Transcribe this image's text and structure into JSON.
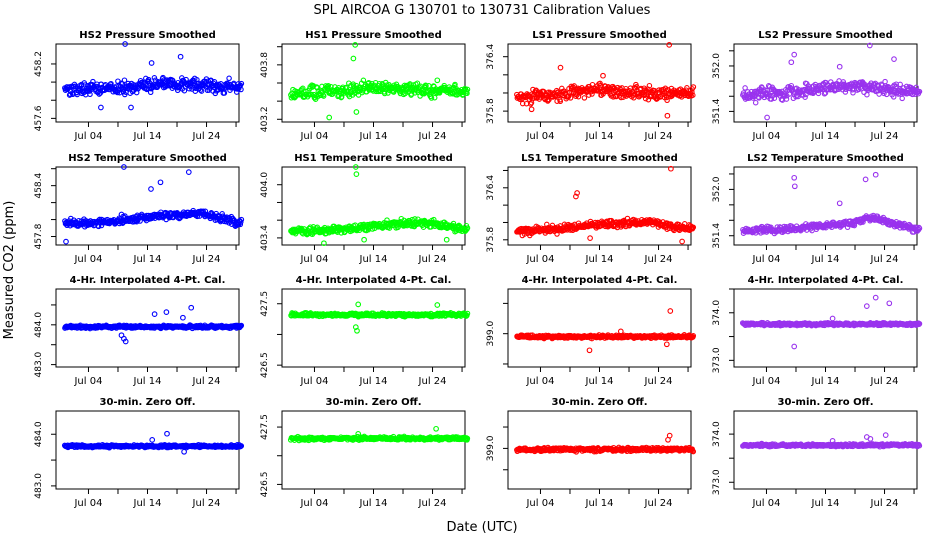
{
  "figure": {
    "title": "SPL   AIRCOA G   130701 to 130731   Calibration Values",
    "xlabel": "Date (UTC)",
    "ylabel": "Measured CO2 (ppm)"
  },
  "chart_data": [
    {
      "type": "scatter",
      "title": "HS2 Pressure Smoothed",
      "series_color": "#0000ff",
      "xlim": [
        -2.5,
        28.5
      ],
      "ylim": [
        457.56,
        458.42
      ],
      "yticks": [
        "457.6",
        "457.8",
        "458.0",
        "458.2"
      ],
      "ytick_values": [
        457.6,
        457.8,
        458.0,
        458.2
      ],
      "ytick_labels_shown": [
        "457.6",
        "458.2"
      ],
      "xticks": [
        "Jul 04",
        "Jul 14",
        "Jul 24"
      ],
      "xtick_days": [
        3,
        13,
        23
      ],
      "x_minor_days": [
        8,
        18,
        28
      ],
      "base": 457.93,
      "noise": 0.05,
      "trend": [
        [
          0,
          0
        ],
        [
          7,
          0
        ],
        [
          12,
          0.02
        ],
        [
          16,
          0.06
        ],
        [
          20,
          0.03
        ],
        [
          28,
          0.02
        ]
      ],
      "outliers": [
        [
          9.2,
          458.42
        ],
        [
          5.1,
          457.72
        ],
        [
          13.7,
          458.21
        ],
        [
          18.6,
          458.28
        ],
        [
          21.0,
          458.04
        ],
        [
          10.2,
          457.72
        ]
      ]
    },
    {
      "type": "scatter",
      "title": "HS1 Pressure Smoothed",
      "series_color": "#00ff00",
      "xlim": [
        -2.5,
        28.5
      ],
      "ylim": [
        403.17,
        404.03
      ],
      "yticks": [
        "403.2",
        "403.4",
        "403.6",
        "403.8",
        "404.0"
      ],
      "ytick_values": [
        403.2,
        403.4,
        403.6,
        403.8,
        404.0
      ],
      "ytick_labels_shown": [
        "403.2",
        "403.8"
      ],
      "xticks": [
        "Jul 04",
        "Jul 14",
        "Jul 24"
      ],
      "xtick_days": [
        3,
        13,
        23
      ],
      "x_minor_days": [
        8,
        18,
        28
      ],
      "base": 403.49,
      "noise": 0.05,
      "trend": [
        [
          0,
          0
        ],
        [
          8,
          0.02
        ],
        [
          12,
          0.06
        ],
        [
          17,
          0.05
        ],
        [
          22,
          0.03
        ],
        [
          28,
          0.02
        ]
      ],
      "outliers": [
        [
          9.9,
          404.02
        ],
        [
          9.6,
          403.87
        ],
        [
          5.5,
          403.22
        ],
        [
          10.1,
          403.28
        ],
        [
          23.8,
          403.63
        ]
      ]
    },
    {
      "type": "scatter",
      "title": "LS1 Pressure Smoothed",
      "series_color": "#ff0000",
      "xlim": [
        -2.5,
        28.5
      ],
      "ylim": [
        375.68,
        376.54
      ],
      "yticks": [
        "375.8",
        "376.0",
        "376.2",
        "376.4"
      ],
      "ytick_values": [
        375.8,
        376.0,
        376.2,
        376.4
      ],
      "ytick_labels_shown": [
        "375.8",
        "376.4"
      ],
      "xticks": [
        "Jul 04",
        "Jul 14",
        "Jul 24"
      ],
      "xtick_days": [
        3,
        13,
        23
      ],
      "x_minor_days": [
        8,
        18,
        28
      ],
      "base": 375.96,
      "noise": 0.05,
      "trend": [
        [
          0,
          0
        ],
        [
          6,
          0.01
        ],
        [
          11,
          0.08
        ],
        [
          16,
          0.06
        ],
        [
          22,
          0.04
        ],
        [
          28,
          0.03
        ]
      ],
      "outliers": [
        [
          24.8,
          376.53
        ],
        [
          6.4,
          376.28
        ],
        [
          24.5,
          375.75
        ],
        [
          13.6,
          376.19
        ],
        [
          1.5,
          375.82
        ]
      ]
    },
    {
      "type": "scatter",
      "title": "LS2 Pressure Smoothed",
      "series_color": "#9933ee",
      "xlim": [
        -2.5,
        28.5
      ],
      "ylim": [
        351.26,
        352.29
      ],
      "yticks": [
        "351.4",
        "351.6",
        "351.8",
        "352.0",
        "352.2"
      ],
      "ytick_values": [
        351.4,
        351.6,
        351.8,
        352.0,
        352.2
      ],
      "ytick_labels_shown": [
        "351.4",
        "352.0"
      ],
      "xticks": [
        "Jul 04",
        "Jul 14",
        "Jul 24"
      ],
      "xtick_days": [
        3,
        13,
        23
      ],
      "x_minor_days": [
        8,
        18,
        28
      ],
      "base": 351.62,
      "noise": 0.06,
      "trend": [
        [
          0,
          0
        ],
        [
          7,
          0.03
        ],
        [
          13,
          0.1
        ],
        [
          18,
          0.12
        ],
        [
          23,
          0.08
        ],
        [
          28,
          0.05
        ]
      ],
      "outliers": [
        [
          7.7,
          352.15
        ],
        [
          20.5,
          352.27
        ],
        [
          7.2,
          352.05
        ],
        [
          24.6,
          352.09
        ],
        [
          15.4,
          351.99
        ],
        [
          3.1,
          351.32
        ]
      ]
    },
    {
      "type": "scatter",
      "title": "HS2 Temperature Smoothed",
      "series_color": "#0000ff",
      "xlim": [
        -2.5,
        28.5
      ],
      "ylim": [
        457.7,
        458.62
      ],
      "yticks": [
        "457.8",
        "458.0",
        "458.2",
        "458.4",
        "458.6"
      ],
      "ytick_values": [
        457.8,
        458.0,
        458.2,
        458.4,
        458.6
      ],
      "ytick_labels_shown": [
        "457.8",
        "458.4"
      ],
      "xticks": [
        "Jul 04",
        "Jul 14",
        "Jul 24"
      ],
      "xtick_days": [
        3,
        13,
        23
      ],
      "x_minor_days": [
        8,
        18,
        28
      ],
      "base": 457.96,
      "noise": 0.03,
      "trend": [
        [
          0,
          0
        ],
        [
          6,
          0.01
        ],
        [
          12,
          0.06
        ],
        [
          18,
          0.1
        ],
        [
          22,
          0.11
        ],
        [
          25,
          0.07
        ],
        [
          28,
          0.01
        ]
      ],
      "outliers": [
        [
          9.0,
          458.62
        ],
        [
          13.6,
          458.36
        ],
        [
          15.2,
          458.44
        ],
        [
          20.0,
          458.56
        ],
        [
          8.6,
          458.06
        ],
        [
          -0.8,
          457.74
        ]
      ]
    },
    {
      "type": "scatter",
      "title": "HS1 Temperature Smoothed",
      "series_color": "#00ff00",
      "xlim": [
        -2.5,
        28.5
      ],
      "ylim": [
        403.32,
        404.2
      ],
      "yticks": [
        "403.4",
        "403.6",
        "403.8",
        "404.0"
      ],
      "ytick_values": [
        403.4,
        403.6,
        403.8,
        404.0
      ],
      "ytick_labels_shown": [
        "403.4",
        "404.0"
      ],
      "xticks": [
        "Jul 04",
        "Jul 14",
        "Jul 24"
      ],
      "xtick_days": [
        3,
        13,
        23
      ],
      "x_minor_days": [
        8,
        18,
        28
      ],
      "base": 403.47,
      "noise": 0.03,
      "trend": [
        [
          0,
          0
        ],
        [
          8,
          0.03
        ],
        [
          14,
          0.07
        ],
        [
          19,
          0.1
        ],
        [
          22,
          0.1
        ],
        [
          26,
          0.06
        ],
        [
          28,
          0.02
        ]
      ],
      "outliers": [
        [
          10.0,
          404.2
        ],
        [
          10.1,
          404.12
        ],
        [
          4.6,
          403.34
        ],
        [
          11.4,
          403.38
        ],
        [
          25.4,
          403.38
        ]
      ]
    },
    {
      "type": "scatter",
      "title": "LS1 Temperature Smoothed",
      "series_color": "#ff0000",
      "xlim": [
        -2.5,
        28.5
      ],
      "ylim": [
        375.74,
        376.64
      ],
      "yticks": [
        "375.8",
        "376.0",
        "376.2",
        "376.4",
        "376.6"
      ],
      "ytick_values": [
        375.8,
        376.0,
        376.2,
        376.4,
        376.6
      ],
      "ytick_labels_shown": [
        "375.8",
        "376.4"
      ],
      "xticks": [
        "Jul 04",
        "Jul 14",
        "Jul 24"
      ],
      "xtick_days": [
        3,
        13,
        23
      ],
      "x_minor_days": [
        8,
        18,
        28
      ],
      "base": 375.9,
      "noise": 0.03,
      "trend": [
        [
          0,
          0
        ],
        [
          7,
          0.03
        ],
        [
          12,
          0.07
        ],
        [
          18,
          0.09
        ],
        [
          21,
          0.12
        ],
        [
          24,
          0.07
        ],
        [
          28,
          0.03
        ]
      ],
      "outliers": [
        [
          9.2,
          376.34
        ],
        [
          9.0,
          376.3
        ],
        [
          25.1,
          376.62
        ],
        [
          11.4,
          375.82
        ],
        [
          27.0,
          375.78
        ]
      ]
    },
    {
      "type": "scatter",
      "title": "LS2 Temperature Smoothed",
      "series_color": "#9933ee",
      "xlim": [
        -2.5,
        28.5
      ],
      "ylim": [
        351.28,
        352.29
      ],
      "yticks": [
        "351.4",
        "351.6",
        "351.8",
        "352.0",
        "352.2"
      ],
      "ytick_values": [
        351.4,
        351.6,
        351.8,
        352.0,
        352.2
      ],
      "ytick_labels_shown": [
        "351.4",
        "352.0"
      ],
      "xticks": [
        "Jul 04",
        "Jul 14",
        "Jul 24"
      ],
      "xtick_days": [
        3,
        13,
        23
      ],
      "x_minor_days": [
        8,
        18,
        28
      ],
      "base": 351.46,
      "noise": 0.03,
      "trend": [
        [
          0,
          0
        ],
        [
          7,
          0.03
        ],
        [
          13,
          0.07
        ],
        [
          18,
          0.11
        ],
        [
          21,
          0.18
        ],
        [
          24,
          0.1
        ],
        [
          28,
          0.03
        ]
      ],
      "outliers": [
        [
          7.8,
          352.04
        ],
        [
          7.7,
          352.15
        ],
        [
          19.8,
          352.13
        ],
        [
          21.5,
          352.19
        ],
        [
          15.4,
          351.82
        ]
      ]
    },
    {
      "type": "scatter",
      "title": "4-Hr. Interpolated 4-Pt. Cal.",
      "series_color": "#0000ff",
      "xlim": [
        -2.5,
        28.5
      ],
      "ylim": [
        482.94,
        484.9
      ],
      "yticks": [
        "483.0",
        "483.5",
        "484.0",
        "484.5"
      ],
      "ytick_values": [
        483.0,
        483.5,
        484.0,
        484.5
      ],
      "ytick_labels_shown": [
        "483.0",
        "484.0"
      ],
      "xticks": [
        "Jul 04",
        "Jul 14",
        "Jul 24"
      ],
      "xtick_days": [
        3,
        13,
        23
      ],
      "x_minor_days": [
        8,
        18,
        28
      ],
      "base": 483.95,
      "noise": 0.025,
      "trend": [
        [
          0,
          0
        ],
        [
          28,
          0
        ]
      ],
      "outliers": [
        [
          9.0,
          483.65
        ],
        [
          9.3,
          483.58
        ],
        [
          8.6,
          483.74
        ],
        [
          14.2,
          484.27
        ],
        [
          16.2,
          484.32
        ],
        [
          20.4,
          484.43
        ],
        [
          19.0,
          484.18
        ]
      ]
    },
    {
      "type": "scatter",
      "title": "4-Hr. Interpolated 4-Pt. Cal.",
      "series_color": "#00ff00",
      "xlim": [
        -2.5,
        28.5
      ],
      "ylim": [
        426.47,
        427.74
      ],
      "yticks": [
        "426.5",
        "427.0",
        "427.5"
      ],
      "ytick_values": [
        426.5,
        427.0,
        427.5
      ],
      "ytick_labels_shown": [
        "426.5",
        "427.5"
      ],
      "xticks": [
        "Jul 04",
        "Jul 14",
        "Jul 24"
      ],
      "xtick_days": [
        3,
        13,
        23
      ],
      "x_minor_days": [
        8,
        18,
        28
      ],
      "base": 427.32,
      "noise": 0.02,
      "trend": [
        [
          0,
          0
        ],
        [
          28,
          0
        ]
      ],
      "outliers": [
        [
          10.0,
          427.12
        ],
        [
          10.2,
          427.06
        ],
        [
          10.4,
          427.49
        ],
        [
          23.8,
          427.48
        ]
      ]
    },
    {
      "type": "scatter",
      "title": "4-Hr. Interpolated 4-Pt. Cal.",
      "series_color": "#ff0000",
      "xlim": [
        -2.5,
        28.5
      ],
      "ylim": [
        398.56,
        399.59
      ],
      "yticks": [
        "398.6",
        "399.0",
        "399.4"
      ],
      "ytick_values": [
        398.6,
        399.0,
        399.4
      ],
      "ytick_labels_shown": [
        "399.0"
      ],
      "xticks": [
        "Jul 04",
        "Jul 14",
        "Jul 24"
      ],
      "xtick_days": [
        3,
        13,
        23
      ],
      "x_minor_days": [
        8,
        18,
        28
      ],
      "base": 398.96,
      "noise": 0.015,
      "trend": [
        [
          0,
          0
        ],
        [
          28,
          0
        ]
      ],
      "outliers": [
        [
          25.0,
          399.3
        ],
        [
          11.3,
          398.78
        ],
        [
          24.4,
          398.86
        ],
        [
          16.6,
          399.03
        ]
      ]
    },
    {
      "type": "scatter",
      "title": "4-Hr. Interpolated 4-Pt. Cal.",
      "series_color": "#9933ee",
      "xlim": [
        -2.5,
        28.5
      ],
      "ylim": [
        372.86,
        374.5
      ],
      "yticks": [
        "373.0",
        "373.5",
        "374.0",
        "374.5"
      ],
      "ytick_values": [
        373.0,
        373.5,
        374.0,
        374.5
      ],
      "ytick_labels_shown": [
        "373.0",
        "374.0"
      ],
      "xticks": [
        "Jul 04",
        "Jul 14",
        "Jul 24"
      ],
      "xtick_days": [
        3,
        13,
        23
      ],
      "x_minor_days": [
        8,
        18,
        28
      ],
      "base": 373.76,
      "noise": 0.02,
      "trend": [
        [
          0,
          0
        ],
        [
          28,
          0
        ]
      ],
      "outliers": [
        [
          7.7,
          373.29
        ],
        [
          21.5,
          374.32
        ],
        [
          23.8,
          374.2
        ],
        [
          20.0,
          374.14
        ],
        [
          14.2,
          373.88
        ]
      ]
    },
    {
      "type": "scatter",
      "title": "30-min. Zero Off.",
      "series_color": "#0000ff",
      "xlim": [
        -2.5,
        28.5
      ],
      "ylim": [
        482.94,
        484.45
      ],
      "yticks": [
        "483.0",
        "483.5",
        "484.0"
      ],
      "ytick_values": [
        483.0,
        483.5,
        484.0
      ],
      "ytick_labels_shown": [
        "483.0",
        "484.0"
      ],
      "xticks": [
        "Jul 04",
        "Jul 14",
        "Jul 24"
      ],
      "xtick_days": [
        3,
        13,
        23
      ],
      "x_minor_days": [
        8,
        18,
        28
      ],
      "base": 483.77,
      "noise": 0.018,
      "trend": [
        [
          0,
          0
        ],
        [
          28,
          0
        ]
      ],
      "outliers": [
        [
          16.3,
          484.01
        ],
        [
          13.8,
          483.89
        ],
        [
          19.2,
          483.66
        ]
      ]
    },
    {
      "type": "scatter",
      "title": "30-min. Zero Off.",
      "series_color": "#00ff00",
      "xlim": [
        -2.5,
        28.5
      ],
      "ylim": [
        426.42,
        427.78
      ],
      "yticks": [
        "426.5",
        "427.0",
        "427.5"
      ],
      "ytick_values": [
        426.5,
        427.0,
        427.5
      ],
      "ytick_labels_shown": [
        "426.5",
        "427.5"
      ],
      "xticks": [
        "Jul 04",
        "Jul 14",
        "Jul 24"
      ],
      "xtick_days": [
        3,
        13,
        23
      ],
      "x_minor_days": [
        8,
        18,
        28
      ],
      "base": 427.3,
      "noise": 0.02,
      "trend": [
        [
          0,
          0
        ],
        [
          28,
          0
        ]
      ],
      "outliers": [
        [
          23.6,
          427.47
        ],
        [
          10.4,
          427.38
        ]
      ]
    },
    {
      "type": "scatter",
      "title": "30-min. Zero Off.",
      "series_color": "#ff0000",
      "xlim": [
        -2.5,
        28.5
      ],
      "ylim": [
        398.62,
        399.35
      ],
      "yticks": [
        "398.8",
        "399.0",
        "399.2"
      ],
      "ytick_values": [
        398.8,
        399.0,
        399.2
      ],
      "ytick_labels_shown": [
        "399.0"
      ],
      "xticks": [
        "Jul 04",
        "Jul 14",
        "Jul 24"
      ],
      "xtick_days": [
        3,
        13,
        23
      ],
      "x_minor_days": [
        8,
        18,
        28
      ],
      "base": 398.99,
      "noise": 0.012,
      "trend": [
        [
          0,
          0
        ],
        [
          28,
          0
        ]
      ],
      "outliers": [
        [
          24.9,
          399.12
        ],
        [
          24.6,
          399.08
        ]
      ]
    },
    {
      "type": "scatter",
      "title": "30-min. Zero Off.",
      "series_color": "#9933ee",
      "xlim": [
        -2.5,
        28.5
      ],
      "ylim": [
        372.86,
        374.48
      ],
      "yticks": [
        "373.0",
        "373.5",
        "374.0"
      ],
      "ytick_values": [
        373.0,
        373.5,
        374.0
      ],
      "ytick_labels_shown": [
        "373.0",
        "374.0"
      ],
      "xticks": [
        "Jul 04",
        "Jul 14",
        "Jul 24"
      ],
      "xtick_days": [
        3,
        13,
        23
      ],
      "x_minor_days": [
        8,
        18,
        28
      ],
      "base": 373.77,
      "noise": 0.02,
      "trend": [
        [
          0,
          0
        ],
        [
          28,
          0
        ]
      ],
      "outliers": [
        [
          20.0,
          373.94
        ],
        [
          23.2,
          373.98
        ],
        [
          20.6,
          373.9
        ],
        [
          14.2,
          373.86
        ]
      ]
    }
  ]
}
